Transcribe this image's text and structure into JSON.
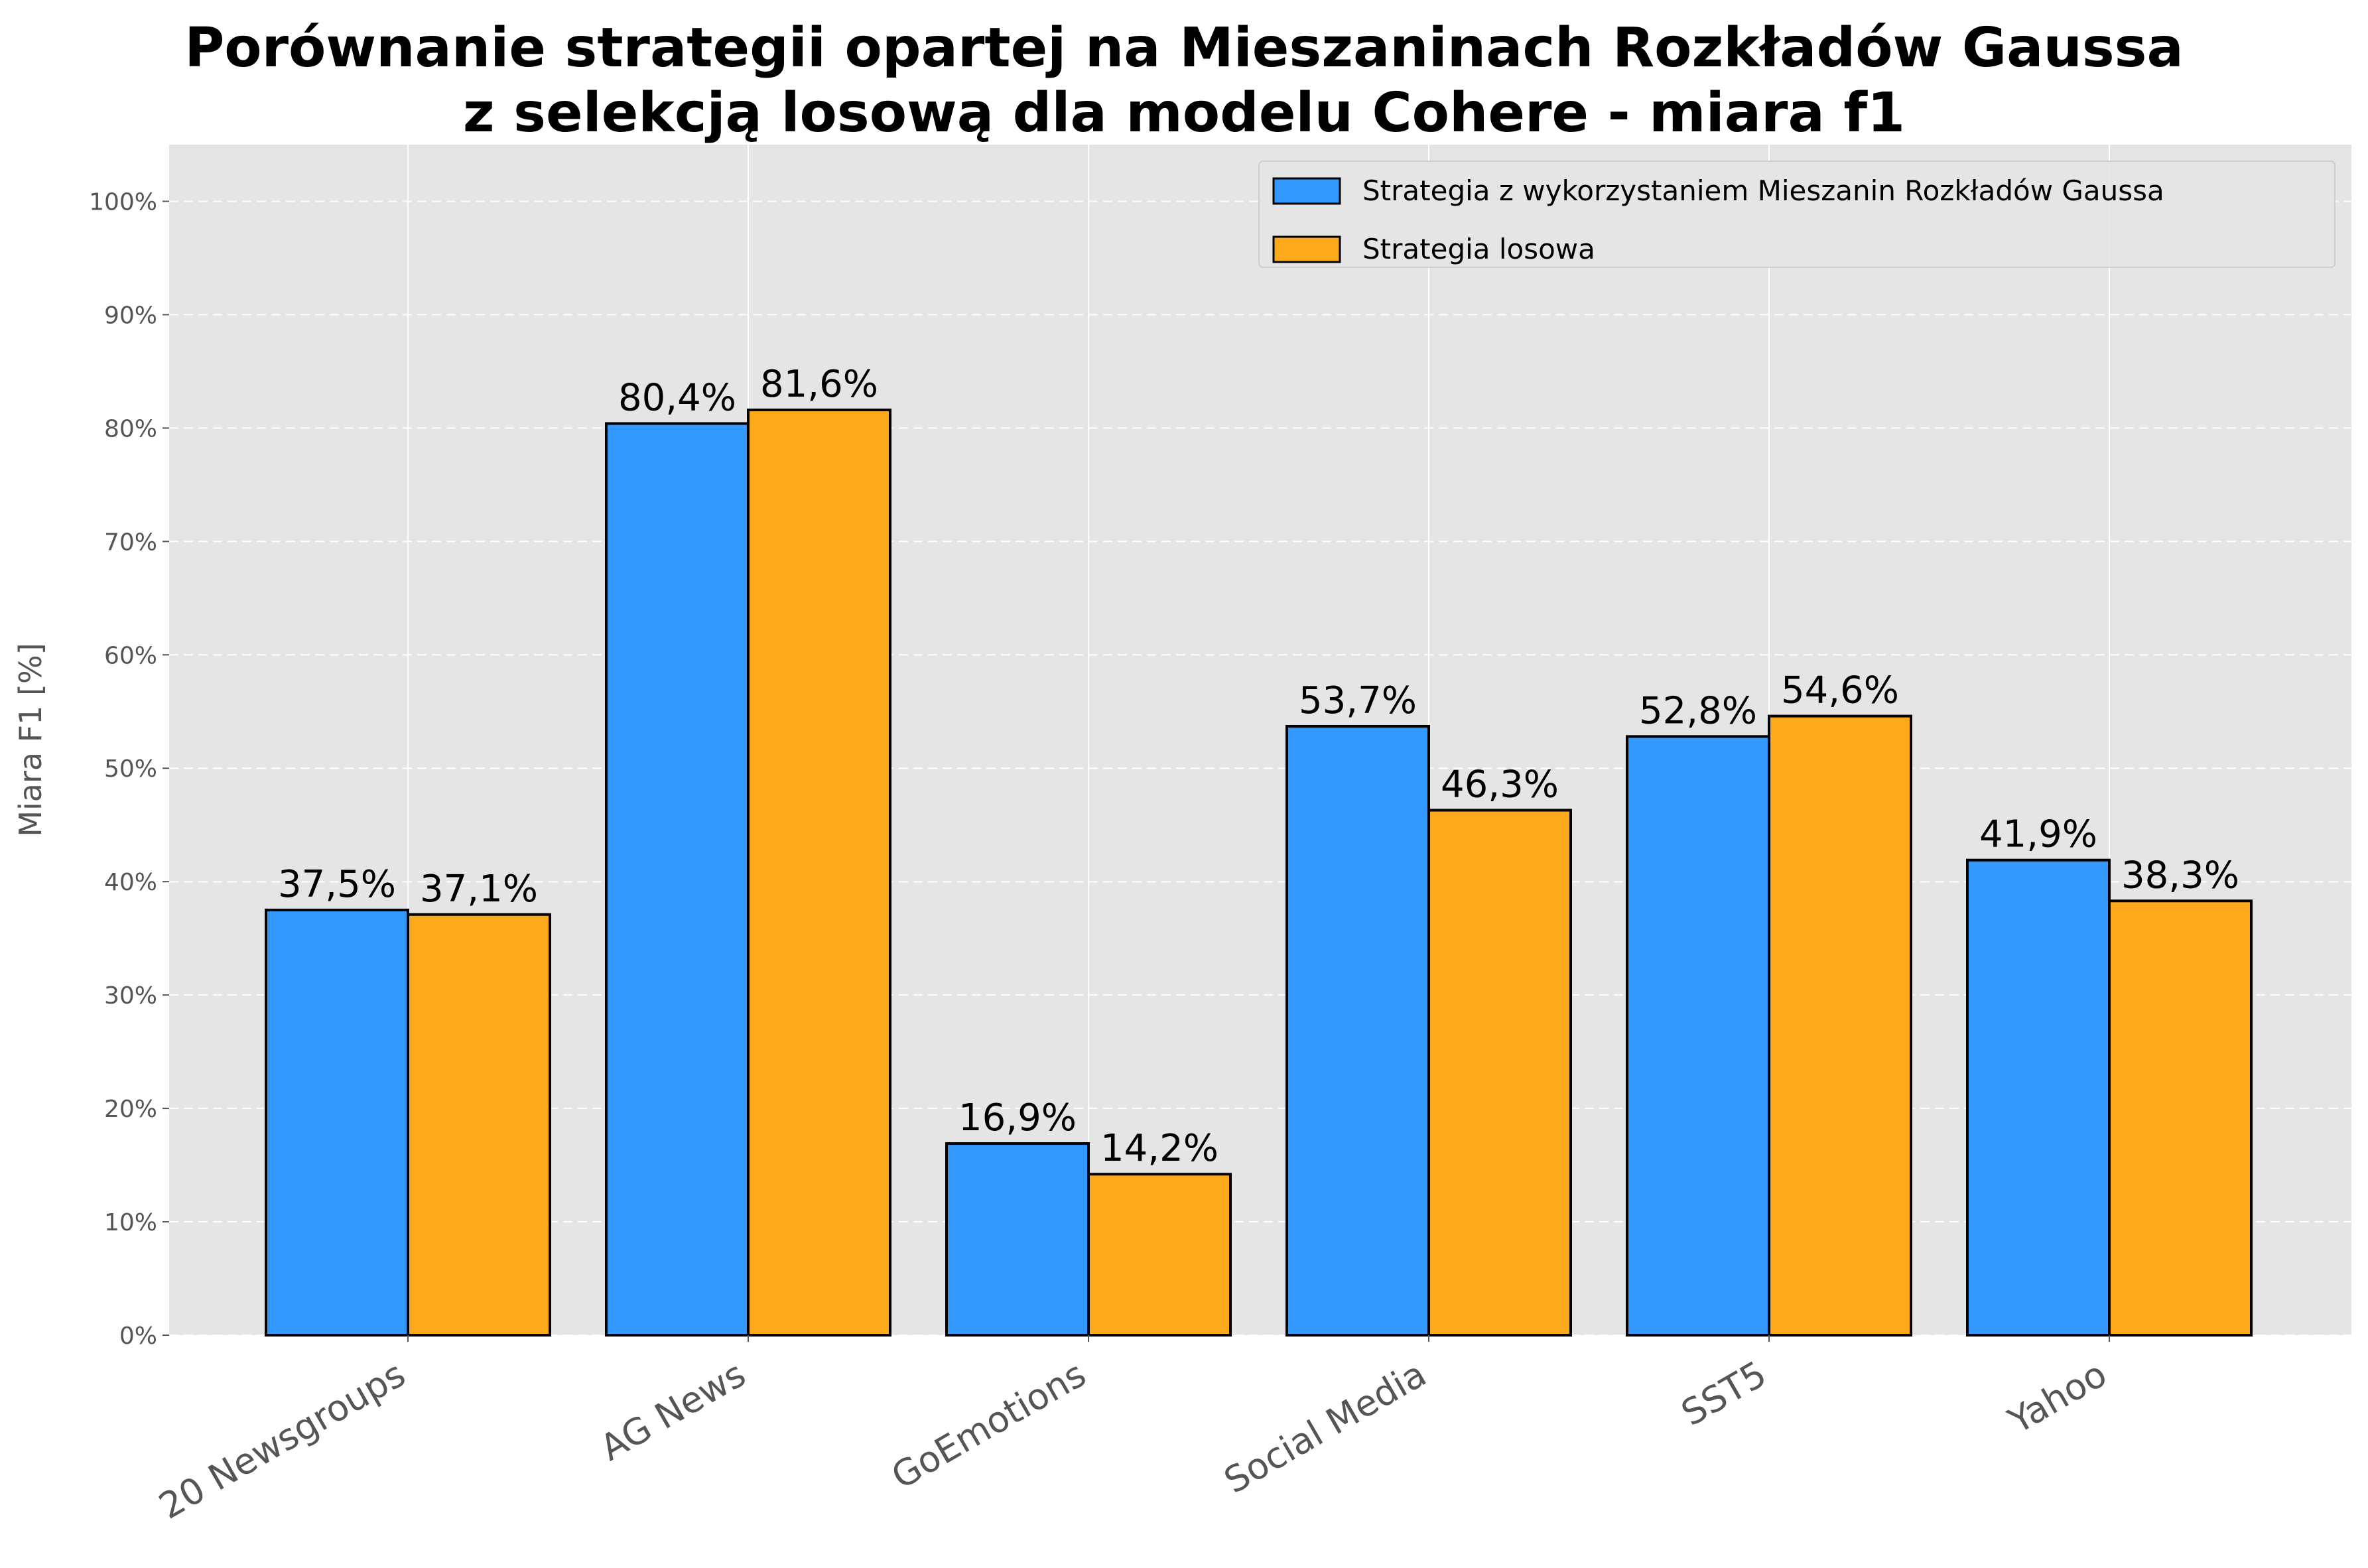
{
  "chart_data": {
    "type": "bar",
    "title": "Porównanie strategii opartej na Mieszaninach Rozkładów Gaussa\nz selekcją losową dla modelu Cohere - miara f1",
    "xlabel": "",
    "ylabel": "Miara F1 [%]",
    "categories": [
      "20 Newsgroups",
      "AG News",
      "GoEmotions",
      "Social Media",
      "SST5",
      "Yahoo"
    ],
    "series": [
      {
        "name": "Strategia z wykorzystaniem Mieszanin Rozkładów Gaussa",
        "color": "#3399ff",
        "values": [
          37.5,
          80.4,
          16.9,
          53.7,
          52.8,
          41.9
        ],
        "labels": [
          "37,5%",
          "80,4%",
          "16,9%",
          "53,7%",
          "52,8%",
          "41,9%"
        ]
      },
      {
        "name": "Strategia losowa",
        "color": "#fca91c",
        "values": [
          37.1,
          81.6,
          14.2,
          46.3,
          54.6,
          38.3
        ],
        "labels": [
          "37,1%",
          "81,6%",
          "14,2%",
          "46,3%",
          "54,6%",
          "38,3%"
        ]
      }
    ],
    "ylim": [
      0,
      105
    ],
    "yticks": [
      0,
      10,
      20,
      30,
      40,
      50,
      60,
      70,
      80,
      90,
      100
    ],
    "ytick_labels": [
      "0%",
      "10%",
      "20%",
      "30%",
      "40%",
      "50%",
      "60%",
      "70%",
      "80%",
      "90%",
      "100%"
    ],
    "grid": true,
    "legend_position": "top-right",
    "background_color": "#e5e5e5"
  }
}
